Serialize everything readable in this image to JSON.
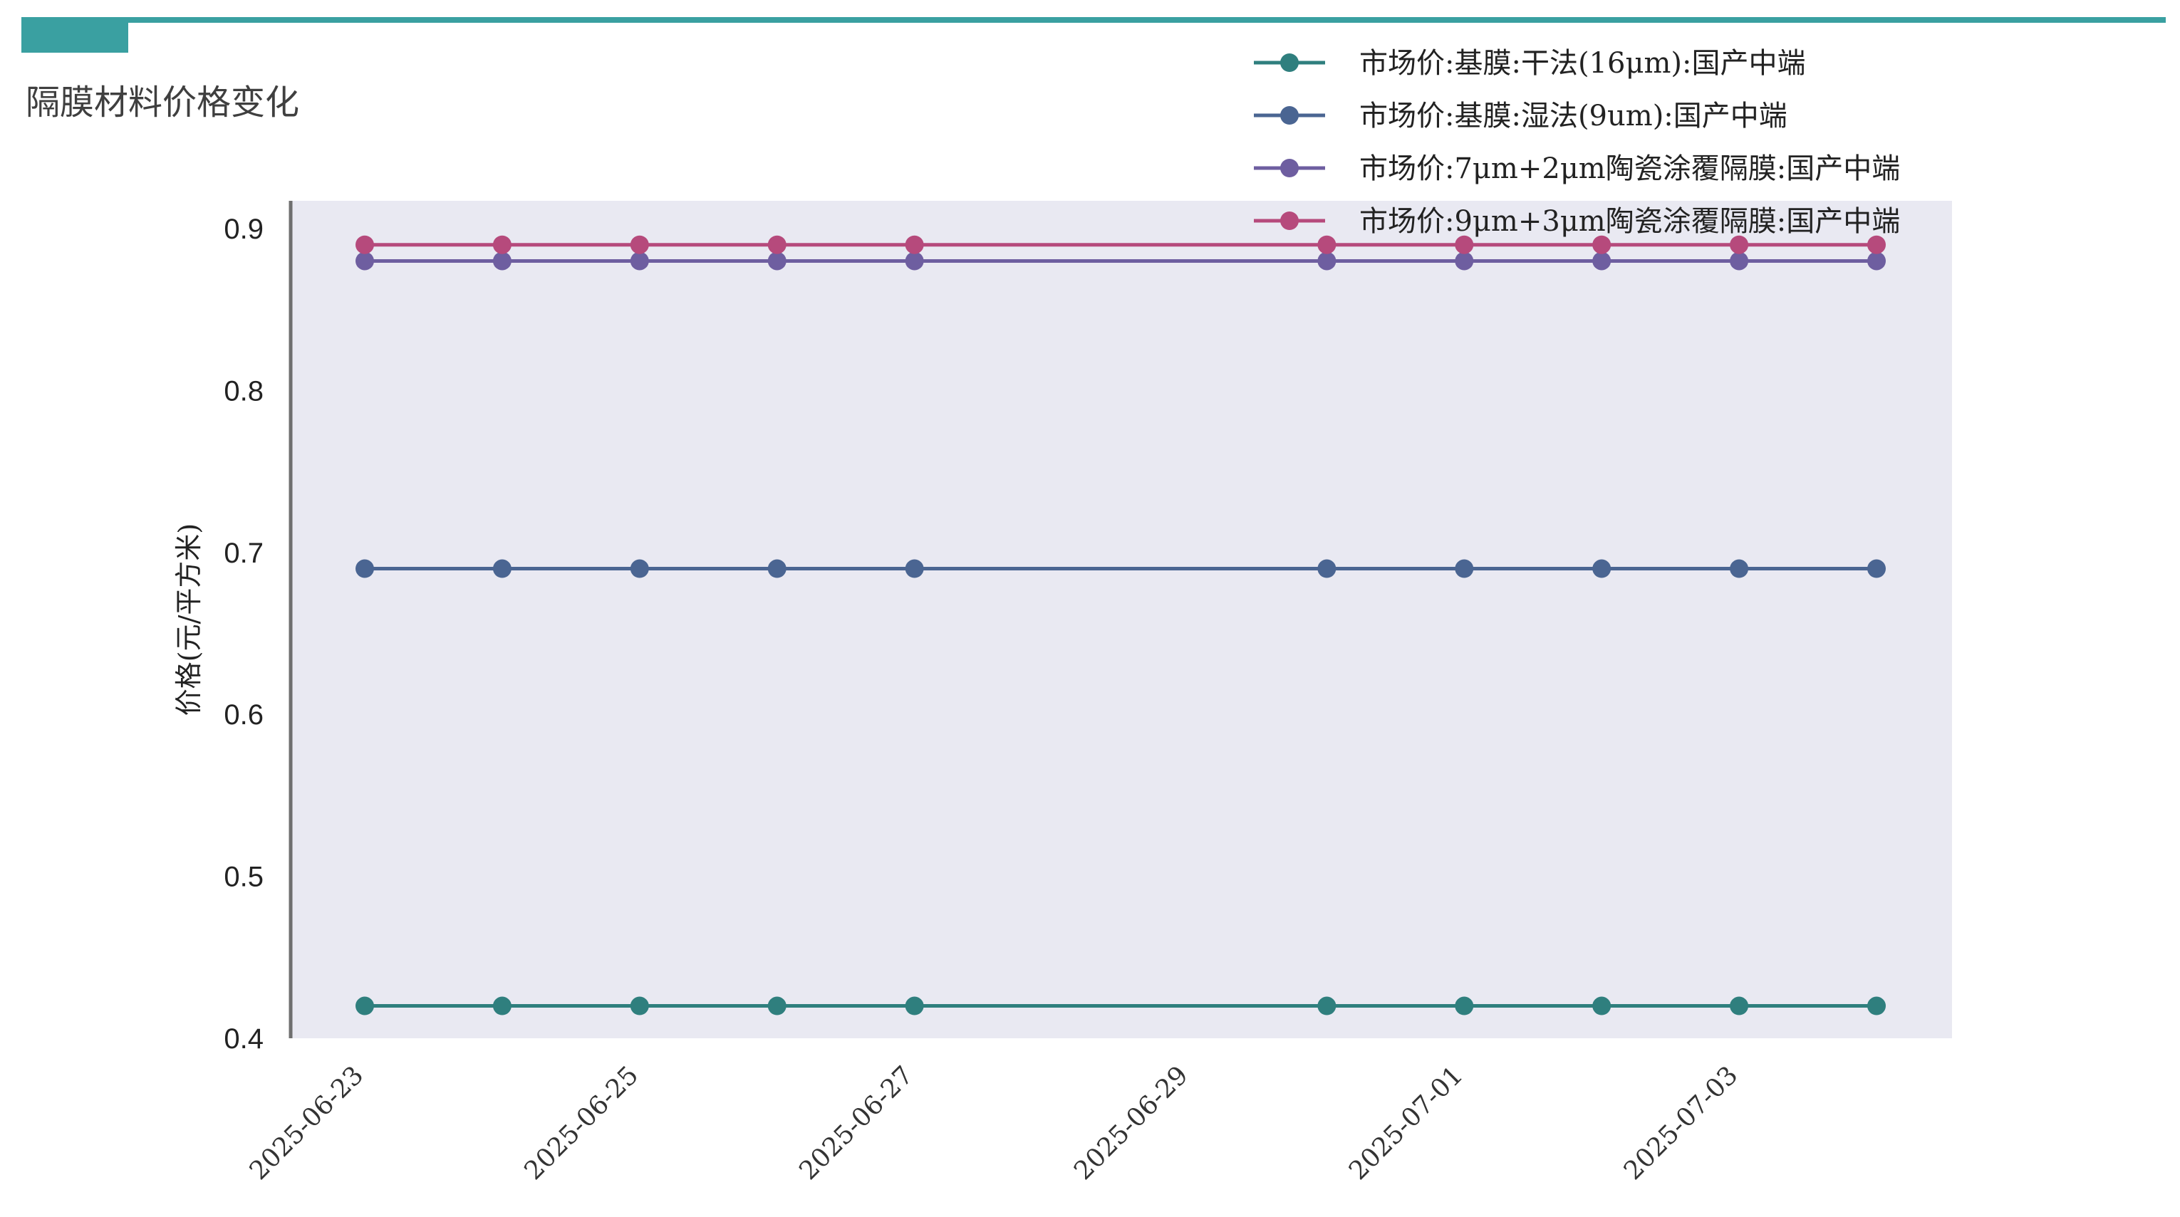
{
  "page": {
    "title": "隔膜材料价格变化"
  },
  "colors": {
    "accent": "#3aa0a1",
    "plot_bg": "#e9e9f2",
    "axis": "#6f6f6f"
  },
  "chart_data": {
    "type": "line",
    "title": "",
    "xlabel": "",
    "ylabel": "价格(元/平方米)",
    "x": [
      "2025-06-23",
      "2025-06-24",
      "2025-06-25",
      "2025-06-26",
      "2025-06-27",
      "2025-06-30",
      "2025-07-01",
      "2025-07-02",
      "2025-07-03",
      "2025-07-04"
    ],
    "xticks": [
      "2025-06-23",
      "2025-06-25",
      "2025-06-27",
      "2025-06-29",
      "2025-07-01",
      "2025-07-03"
    ],
    "xlim": [
      "2025-06-22",
      "2025-07-05"
    ],
    "ylim": [
      0.4,
      0.92
    ],
    "yticks": [
      0.4,
      0.5,
      0.6,
      0.7,
      0.8,
      0.9
    ],
    "ytick_labels": [
      "0.4",
      "0.5",
      "0.6",
      "0.7",
      "0.8",
      "0.9"
    ],
    "grid": false,
    "legend_position": "top-right",
    "series": [
      {
        "name": "市场价:基膜:干法(16μm):国产中端",
        "color": "#2f7f7e",
        "values": [
          0.42,
          0.42,
          0.42,
          0.42,
          0.42,
          0.42,
          0.42,
          0.42,
          0.42,
          0.42
        ]
      },
      {
        "name": "市场价:基膜:湿法(9um):国产中端",
        "color": "#4a6592",
        "values": [
          0.69,
          0.69,
          0.69,
          0.69,
          0.69,
          0.69,
          0.69,
          0.69,
          0.69,
          0.69
        ]
      },
      {
        "name": "市场价:7μm+2μm陶瓷涂覆隔膜:国产中端",
        "color": "#6e5ea0",
        "values": [
          0.88,
          0.88,
          0.88,
          0.88,
          0.88,
          0.88,
          0.88,
          0.88,
          0.88,
          0.88
        ]
      },
      {
        "name": "市场价:9μm+3μm陶瓷涂覆隔膜:国产中端",
        "color": "#b64a7c",
        "values": [
          0.89,
          0.89,
          0.89,
          0.89,
          0.89,
          0.89,
          0.89,
          0.89,
          0.89,
          0.89
        ]
      }
    ]
  }
}
